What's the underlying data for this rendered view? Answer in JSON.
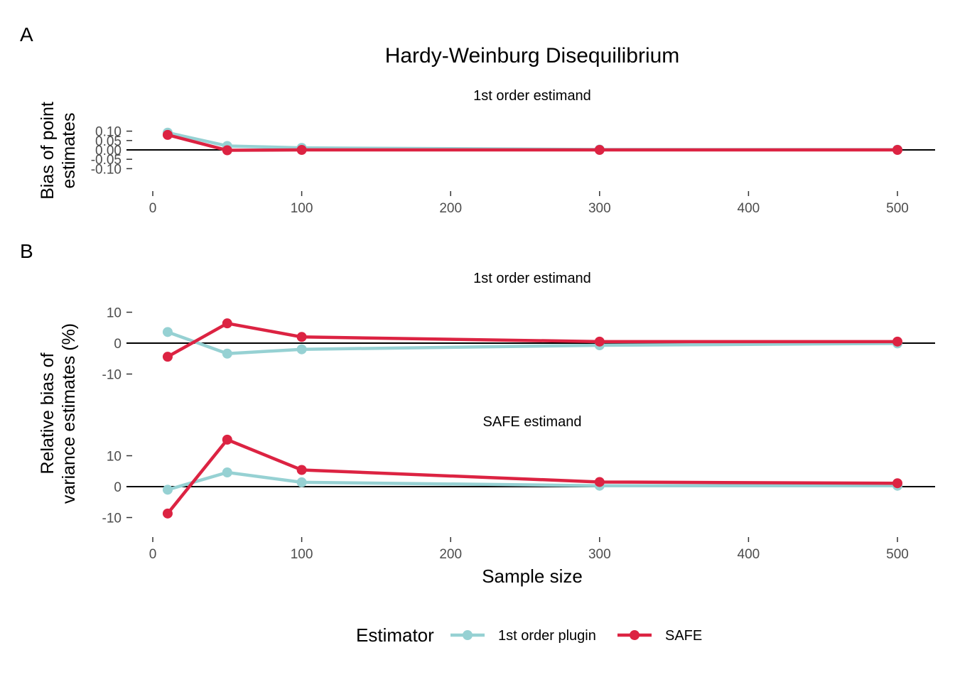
{
  "figure": {
    "title": "Hardy-Weinburg Disequilibrium",
    "panel_a_tag": "A",
    "panel_b_tag": "B",
    "legend": {
      "title": "Estimator",
      "items": [
        {
          "label": "1st order plugin",
          "color": "#96D1D3"
        },
        {
          "label": "SAFE",
          "color": "#DC2342"
        }
      ]
    }
  },
  "chart_data": [
    {
      "type": "line",
      "panel": "A",
      "facet_title": "1st order estimand",
      "ylabel_lines": [
        "Bias of point",
        "estimates"
      ],
      "xlabel": "",
      "ylim": [
        -0.1,
        0.1
      ],
      "yticks": [
        0.1,
        0.05,
        0.0,
        -0.05,
        -0.1
      ],
      "ytick_labels": [
        "0.10",
        "0.05",
        "0.00",
        "-0.05",
        "-0.10"
      ],
      "xlim": [
        0,
        500
      ],
      "xticks": [
        0,
        100,
        200,
        300,
        400,
        500
      ],
      "xtick_labels": [
        "0",
        "100",
        "200",
        "300",
        "400",
        "500"
      ],
      "hline": 0,
      "x": [
        10,
        50,
        100,
        300,
        500
      ],
      "series": [
        {
          "name": "1st order plugin",
          "color": "#96D1D3",
          "values": [
            0.092,
            0.021,
            0.011,
            0.002,
            0.001
          ]
        },
        {
          "name": "SAFE",
          "color": "#DC2342",
          "values": [
            0.08,
            -0.002,
            0.0,
            0.0,
            0.0
          ]
        }
      ]
    },
    {
      "type": "line",
      "panel": "B",
      "facet_title": "1st order estimand",
      "ylabel_lines": [
        "Relative bias of",
        "variance estimates (%)"
      ],
      "xlabel": "",
      "yticks": [
        10,
        0,
        -10
      ],
      "ytick_labels": [
        "10",
        "0",
        "-10"
      ],
      "xlim": [
        0,
        500
      ],
      "hline": 0,
      "x": [
        10,
        50,
        100,
        300,
        500
      ],
      "series": [
        {
          "name": "1st order plugin",
          "color": "#96D1D3",
          "values": [
            3.6,
            -3.4,
            -2.0,
            -0.7,
            -0.1
          ]
        },
        {
          "name": "SAFE",
          "color": "#DC2342",
          "values": [
            -4.4,
            6.4,
            2.0,
            0.5,
            0.5
          ]
        }
      ]
    },
    {
      "type": "line",
      "panel": "B",
      "facet_title": "SAFE estimand",
      "xlabel": "Sample size",
      "yticks": [
        10,
        0,
        -10
      ],
      "ytick_labels": [
        "10",
        "0",
        "-10"
      ],
      "xlim": [
        0,
        500
      ],
      "xticks": [
        0,
        100,
        200,
        300,
        400,
        500
      ],
      "xtick_labels": [
        "0",
        "100",
        "200",
        "300",
        "400",
        "500"
      ],
      "hline": 0,
      "x": [
        10,
        50,
        100,
        300,
        500
      ],
      "series": [
        {
          "name": "1st order plugin",
          "color": "#96D1D3",
          "values": [
            -1.0,
            4.6,
            1.4,
            0.3,
            0.3
          ]
        },
        {
          "name": "SAFE",
          "color": "#DC2342",
          "values": [
            -8.7,
            15.2,
            5.4,
            1.5,
            1.1
          ]
        }
      ]
    }
  ]
}
